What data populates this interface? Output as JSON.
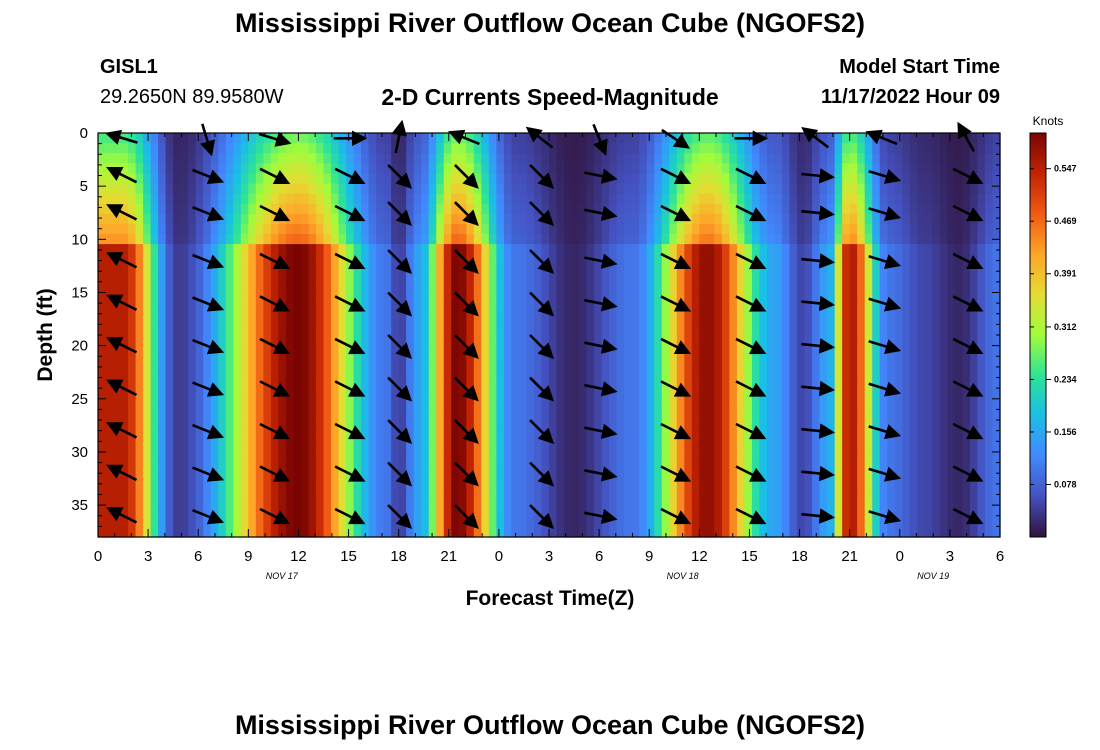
{
  "page": {
    "title_top": "Mississippi River Outflow Ocean Cube (NGOFS2)",
    "title_bottom": "Mississippi River Outflow Ocean Cube (NGOFS2)",
    "station_id": "GISL1",
    "coordinates": "29.2650N  89.9580W",
    "model_start_label": "Model Start Time",
    "model_start_value": "11/17/2022 Hour 09"
  },
  "chart_data": {
    "type": "heatmap",
    "title": "2-D Currents Speed-Magnitude",
    "xlabel": "Forecast Time(Z)",
    "ylabel": "Depth (ft)",
    "x_unit": "hours from 2022-11-17 00Z",
    "xlim": [
      0,
      54
    ],
    "ylim": [
      0,
      38
    ],
    "y_inverted": true,
    "x_tick_labels": [
      "0",
      "3",
      "6",
      "9",
      "12",
      "15",
      "18",
      "21",
      "0",
      "3",
      "6",
      "9",
      "12",
      "15",
      "18",
      "21",
      "0",
      "3",
      "6"
    ],
    "x_tick_values": [
      0,
      3,
      6,
      9,
      12,
      15,
      18,
      21,
      24,
      27,
      30,
      33,
      36,
      39,
      42,
      45,
      48,
      51,
      54
    ],
    "y_ticks": [
      0,
      5,
      10,
      15,
      20,
      25,
      30,
      35
    ],
    "date_labels": [
      {
        "label": "NOV 17",
        "x": 11
      },
      {
        "label": "NOV 18",
        "x": 35
      },
      {
        "label": "NOV 19",
        "x": 50
      }
    ],
    "colorbar": {
      "label": "Knots",
      "ticks": [
        "0.547",
        "0.469",
        "0.391",
        "0.312",
        "0.234",
        "0.156",
        "0.078"
      ],
      "tick_values": [
        0.547,
        0.469,
        0.391,
        0.312,
        0.234,
        0.156,
        0.078
      ],
      "range": [
        0,
        0.6
      ]
    },
    "speed_peaks": [
      {
        "t": 1.5,
        "speed": 0.55
      },
      {
        "t": 4.8,
        "speed": 0.04
      },
      {
        "t": 12.0,
        "speed": 0.6
      },
      {
        "t": 17.3,
        "speed": 0.1
      },
      {
        "t": 18.0,
        "speed": 0.04
      },
      {
        "t": 19.2,
        "speed": 0.15
      },
      {
        "t": 21.5,
        "speed": 0.6
      },
      {
        "t": 25.0,
        "speed": 0.1
      },
      {
        "t": 28.5,
        "speed": 0.02
      },
      {
        "t": 32.0,
        "speed": 0.1
      },
      {
        "t": 36.5,
        "speed": 0.58
      },
      {
        "t": 40.5,
        "speed": 0.15
      },
      {
        "t": 42.2,
        "speed": 0.05
      },
      {
        "t": 43.7,
        "speed": 0.15
      },
      {
        "t": 45.0,
        "speed": 0.56
      },
      {
        "t": 47.3,
        "speed": 0.1
      },
      {
        "t": 49.5,
        "speed": 0.05
      },
      {
        "t": 51.5,
        "speed": 0.02
      },
      {
        "t": 54.0,
        "speed": 0.1
      }
    ],
    "vector_rows_depth_ft": [
      0.5,
      4.0,
      7.5,
      12.0,
      16.0,
      20.0,
      24.0,
      28.0,
      32.0,
      36.0
    ],
    "vector_columns": [
      {
        "t": 1.5,
        "u": -1,
        "v": 0.5,
        "surface_u": -1,
        "surface_v": 0.3
      },
      {
        "t": 6.5,
        "u": 1,
        "v": -0.4,
        "surface_u": 0.3,
        "surface_v": -1
      },
      {
        "t": 10.5,
        "u": 1,
        "v": -0.5,
        "surface_u": 1,
        "surface_v": -0.3
      },
      {
        "t": 15.0,
        "u": 1,
        "v": -0.5,
        "surface_u": 1,
        "surface_v": 0
      },
      {
        "t": 18.0,
        "u": 0.7,
        "v": -0.7,
        "surface_u": 0.2,
        "surface_v": 1
      },
      {
        "t": 22.0,
        "u": 0.7,
        "v": -0.7,
        "surface_u": -1,
        "surface_v": 0.4
      },
      {
        "t": 26.5,
        "u": 0.7,
        "v": -0.7,
        "surface_u": -0.9,
        "surface_v": 0.7
      },
      {
        "t": 30.0,
        "u": 1,
        "v": -0.2,
        "surface_u": 0.4,
        "surface_v": -1
      },
      {
        "t": 34.5,
        "u": 1,
        "v": -0.5,
        "surface_u": 0.9,
        "surface_v": -0.6
      },
      {
        "t": 39.0,
        "u": 1,
        "v": -0.5,
        "surface_u": 1,
        "surface_v": 0
      },
      {
        "t": 43.0,
        "u": 1,
        "v": -0.1,
        "surface_u": -0.8,
        "surface_v": 0.6
      },
      {
        "t": 47.0,
        "u": 1,
        "v": -0.3,
        "surface_u": -1,
        "surface_v": 0.4
      },
      {
        "t": 52.0,
        "u": 1,
        "v": -0.5,
        "surface_u": -0.5,
        "surface_v": 0.9
      }
    ]
  }
}
